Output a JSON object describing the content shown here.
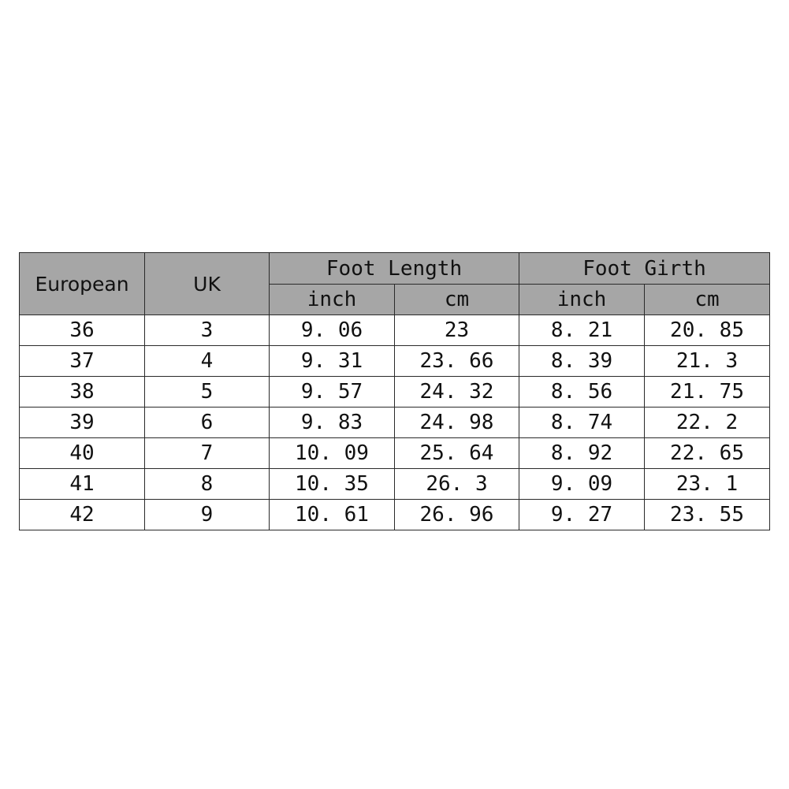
{
  "table": {
    "headers": {
      "european": "European",
      "uk": "UK",
      "foot_length": "Foot Length",
      "foot_girth": "Foot Girth",
      "length_inch": "inch",
      "length_cm": "cm",
      "girth_inch": "inch",
      "girth_cm": "cm"
    },
    "rows": [
      [
        "36",
        "3",
        "9. 06",
        "23",
        "8. 21",
        "20. 85"
      ],
      [
        "37",
        "4",
        "9. 31",
        "23. 66",
        "8. 39",
        "21. 3"
      ],
      [
        "38",
        "5",
        "9. 57",
        "24. 32",
        "8. 56",
        "21. 75"
      ],
      [
        "39",
        "6",
        "9. 83",
        "24. 98",
        "8. 74",
        "22. 2"
      ],
      [
        "40",
        "7",
        "10. 09",
        "25. 64",
        "8. 92",
        "22. 65"
      ],
      [
        "41",
        "8",
        "10. 35",
        "26. 3",
        "9. 09",
        "23. 1"
      ],
      [
        "42",
        "9",
        "10. 61",
        "26. 96",
        "9. 27",
        "23. 55"
      ]
    ],
    "colors": {
      "header_bg": "#a6a6a6",
      "border": "#2a2a2a",
      "body_bg": "#ffffff"
    }
  }
}
